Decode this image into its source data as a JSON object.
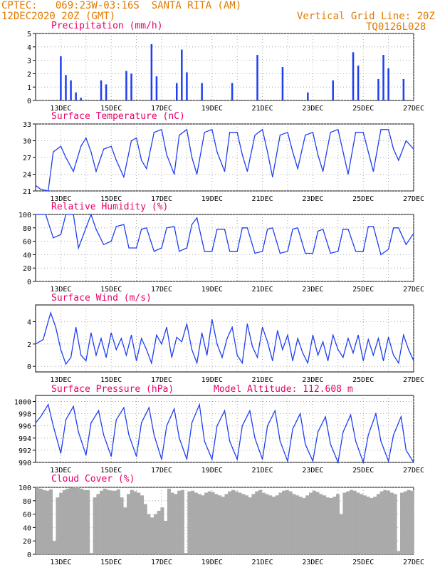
{
  "header": {
    "left_line1": "CPTEC:   069:23W-03:16S  SANTA RITA (AM)",
    "left_line2": "12DEC2020 20Z (GMT)",
    "right_line1": "Vertical Grid Line: 20Z",
    "right_line2": "TQ0126L028"
  },
  "colors": {
    "series": "#1f3ff0",
    "title": "#e8006a",
    "header": "#e07a00",
    "cloud": "#aaaaaa",
    "grid": "#999999"
  },
  "chart_data": [
    {
      "type": "bar",
      "title": "Precipitation (mm/h)",
      "ylim": [
        0,
        5
      ],
      "yticks": [
        0,
        1,
        2,
        3,
        4,
        5
      ],
      "xlabels": [
        "13DEC",
        "15DEC",
        "17DEC",
        "19DEC",
        "21DEC",
        "23DEC",
        "25DEC",
        "27DEC"
      ],
      "x_days": [
        13.0,
        13.2,
        13.4,
        13.6,
        13.8,
        14.6,
        14.8,
        15.6,
        15.8,
        16.6,
        16.8,
        17.6,
        17.8,
        18.0,
        18.6,
        19.8,
        20.8,
        21.8,
        22.8,
        23.8,
        24.6,
        24.8,
        25.6,
        25.8,
        26.0,
        26.6
      ],
      "values": [
        3.3,
        1.9,
        1.5,
        0.6,
        0.2,
        1.5,
        1.2,
        2.2,
        2.0,
        4.2,
        1.8,
        1.3,
        3.8,
        2.1,
        1.3,
        1.3,
        3.4,
        2.5,
        0.6,
        1.5,
        3.6,
        2.6,
        1.6,
        3.4,
        2.4,
        1.6
      ]
    },
    {
      "type": "line",
      "title": "Surface Temperature (nC)",
      "ylim": [
        21,
        33
      ],
      "yticks": [
        21,
        24,
        27,
        30,
        33
      ],
      "xlabels": [
        "13DEC",
        "15DEC",
        "17DEC",
        "19DEC",
        "21DEC",
        "23DEC",
        "25DEC",
        "27DEC"
      ],
      "x": [
        12.0,
        12.2,
        12.5,
        12.7,
        13.0,
        13.2,
        13.5,
        13.8,
        14.0,
        14.2,
        14.4,
        14.7,
        15.0,
        15.2,
        15.5,
        15.8,
        16.0,
        16.2,
        16.4,
        16.7,
        17.0,
        17.2,
        17.5,
        17.7,
        18.0,
        18.2,
        18.4,
        18.7,
        19.0,
        19.2,
        19.5,
        19.7,
        20.0,
        20.2,
        20.4,
        20.7,
        21.0,
        21.2,
        21.4,
        21.7,
        22.0,
        22.2,
        22.4,
        22.7,
        23.0,
        23.2,
        23.4,
        23.7,
        24.0,
        24.2,
        24.4,
        24.7,
        25.0,
        25.2,
        25.4,
        25.7,
        26.0,
        26.2,
        26.4,
        26.7,
        27.0
      ],
      "values": [
        22.0,
        21.3,
        21.0,
        28.0,
        29.0,
        27.0,
        24.5,
        29.0,
        30.5,
        28.0,
        24.5,
        28.5,
        29.0,
        26.5,
        23.5,
        30.0,
        30.5,
        26.5,
        25.0,
        31.5,
        32.0,
        27.5,
        24.0,
        31.0,
        32.0,
        27.0,
        24.0,
        31.5,
        32.0,
        28.0,
        24.5,
        31.5,
        31.5,
        27.5,
        24.5,
        31.0,
        32.0,
        28.0,
        23.5,
        31.0,
        31.5,
        28.0,
        25.0,
        31.0,
        31.5,
        27.5,
        24.5,
        31.5,
        32.0,
        28.0,
        24.0,
        31.5,
        31.5,
        28.0,
        24.5,
        32.0,
        32.0,
        28.5,
        26.5,
        30.0,
        28.5
      ]
    },
    {
      "type": "line",
      "title": "Relative Humidity (%)",
      "ylim": [
        0,
        100
      ],
      "yticks": [
        0,
        20,
        40,
        60,
        80,
        100
      ],
      "xlabels": [
        "13DEC",
        "15DEC",
        "17DEC",
        "19DEC",
        "21DEC",
        "23DEC",
        "25DEC",
        "27DEC"
      ],
      "x": [
        12.0,
        12.4,
        12.7,
        13.0,
        13.2,
        13.5,
        13.7,
        14.0,
        14.2,
        14.4,
        14.7,
        15.0,
        15.2,
        15.5,
        15.7,
        16.0,
        16.2,
        16.4,
        16.7,
        17.0,
        17.2,
        17.5,
        17.7,
        18.0,
        18.2,
        18.4,
        18.7,
        19.0,
        19.2,
        19.5,
        19.7,
        20.0,
        20.2,
        20.4,
        20.7,
        21.0,
        21.2,
        21.4,
        21.7,
        22.0,
        22.2,
        22.4,
        22.7,
        23.0,
        23.2,
        23.4,
        23.7,
        24.0,
        24.2,
        24.4,
        24.7,
        25.0,
        25.2,
        25.4,
        25.7,
        26.0,
        26.2,
        26.4,
        26.7,
        27.0
      ],
      "values": [
        100,
        100,
        65,
        70,
        100,
        100,
        50,
        80,
        100,
        78,
        55,
        60,
        82,
        85,
        50,
        50,
        78,
        80,
        45,
        50,
        80,
        82,
        45,
        50,
        85,
        95,
        45,
        45,
        78,
        78,
        45,
        45,
        80,
        80,
        42,
        45,
        78,
        80,
        42,
        45,
        78,
        80,
        42,
        42,
        75,
        78,
        42,
        45,
        78,
        78,
        45,
        45,
        82,
        82,
        40,
        48,
        80,
        80,
        55,
        72
      ]
    },
    {
      "type": "line",
      "title": "Surface Wind (m/s)",
      "ylim": [
        -0.5,
        5.5
      ],
      "yticks": [
        0,
        2,
        4
      ],
      "xlabels": [
        "13DEC",
        "15DEC",
        "17DEC",
        "19DEC",
        "21DEC",
        "23DEC",
        "25DEC",
        "27DEC"
      ],
      "x": [
        12.0,
        12.3,
        12.6,
        12.8,
        13.0,
        13.2,
        13.4,
        13.6,
        13.8,
        14.0,
        14.2,
        14.4,
        14.6,
        14.8,
        15.0,
        15.2,
        15.4,
        15.6,
        15.8,
        16.0,
        16.2,
        16.4,
        16.6,
        16.8,
        17.0,
        17.2,
        17.4,
        17.6,
        17.8,
        18.0,
        18.2,
        18.4,
        18.6,
        18.8,
        19.0,
        19.2,
        19.4,
        19.6,
        19.8,
        20.0,
        20.2,
        20.4,
        20.6,
        20.8,
        21.0,
        21.2,
        21.4,
        21.6,
        21.8,
        22.0,
        22.2,
        22.4,
        22.6,
        22.8,
        23.0,
        23.2,
        23.4,
        23.6,
        23.8,
        24.0,
        24.2,
        24.4,
        24.6,
        24.8,
        25.0,
        25.2,
        25.4,
        25.6,
        25.8,
        26.0,
        26.2,
        26.4,
        26.6,
        26.8,
        27.0
      ],
      "values": [
        2.0,
        2.4,
        4.8,
        3.5,
        1.5,
        0.2,
        0.8,
        3.5,
        1.0,
        0.5,
        3.0,
        1.0,
        2.5,
        0.8,
        3.0,
        1.5,
        2.5,
        1.0,
        2.8,
        0.5,
        2.5,
        1.5,
        0.3,
        2.8,
        2.0,
        3.5,
        0.8,
        2.6,
        2.2,
        3.8,
        1.5,
        0.3,
        3.0,
        1.0,
        4.2,
        2.0,
        0.8,
        2.5,
        3.5,
        1.0,
        0.3,
        3.8,
        1.8,
        0.8,
        3.5,
        2.2,
        0.5,
        3.2,
        1.5,
        2.8,
        0.5,
        2.5,
        1.2,
        0.3,
        2.8,
        1.0,
        2.2,
        0.5,
        2.8,
        1.5,
        0.8,
        2.5,
        1.2,
        2.8,
        0.5,
        2.4,
        1.0,
        2.5,
        0.5,
        2.6,
        1.0,
        0.3,
        2.8,
        1.5,
        0.5
      ]
    },
    {
      "type": "line",
      "title": "Surface Pressure (hPa)",
      "annotation": "Model Altitude: 112.608 m",
      "ylim": [
        990,
        1001
      ],
      "yticks": [
        990,
        992,
        994,
        996,
        998,
        1000
      ],
      "xlabels": [
        "13DEC",
        "15DEC",
        "17DEC",
        "19DEC",
        "21DEC",
        "23DEC",
        "25DEC",
        "27DEC"
      ],
      "x": [
        12.0,
        12.2,
        12.5,
        12.7,
        13.0,
        13.2,
        13.5,
        13.7,
        14.0,
        14.2,
        14.5,
        14.7,
        15.0,
        15.2,
        15.5,
        15.7,
        16.0,
        16.2,
        16.5,
        16.7,
        17.0,
        17.2,
        17.5,
        17.7,
        18.0,
        18.2,
        18.5,
        18.7,
        19.0,
        19.2,
        19.5,
        19.7,
        20.0,
        20.2,
        20.5,
        20.7,
        21.0,
        21.2,
        21.5,
        21.7,
        22.0,
        22.2,
        22.5,
        22.7,
        23.0,
        23.2,
        23.5,
        23.7,
        24.0,
        24.2,
        24.5,
        24.7,
        25.0,
        25.2,
        25.5,
        25.7,
        26.0,
        26.2,
        26.5,
        26.7,
        27.0
      ],
      "values": [
        996.5,
        997.5,
        999.5,
        996.0,
        991.5,
        997.0,
        999.2,
        995.0,
        991.2,
        996.5,
        998.5,
        994.5,
        991.0,
        997.0,
        999.0,
        994.5,
        991.0,
        996.5,
        999.0,
        994.5,
        990.5,
        996.0,
        998.8,
        994.0,
        990.5,
        996.5,
        999.5,
        993.5,
        990.5,
        996.0,
        998.5,
        993.5,
        990.5,
        996.0,
        998.5,
        994.0,
        990.5,
        996.0,
        998.5,
        993.5,
        990.2,
        995.5,
        998.0,
        993.0,
        990.2,
        995.0,
        997.5,
        993.0,
        990.0,
        995.0,
        997.8,
        993.5,
        990.0,
        994.5,
        998.0,
        993.5,
        990.2,
        994.5,
        997.5,
        992.0,
        990.0
      ]
    },
    {
      "type": "bar",
      "title": "Cloud Cover (%)",
      "ylim": [
        0,
        100
      ],
      "yticks": [
        0,
        20,
        40,
        60,
        80,
        100
      ],
      "xlabels": [
        "13DEC",
        "15DEC",
        "17DEC",
        "19DEC",
        "21DEC",
        "23DEC",
        "25DEC",
        "27DEC"
      ],
      "values": [
        100,
        98,
        96,
        95,
        97,
        20,
        85,
        92,
        96,
        98,
        99,
        100,
        100,
        98,
        96,
        96,
        2,
        85,
        90,
        95,
        98,
        96,
        95,
        95,
        97,
        85,
        70,
        90,
        96,
        94,
        92,
        88,
        75,
        60,
        55,
        60,
        65,
        70,
        50,
        98,
        92,
        90,
        95,
        96,
        2,
        94,
        95,
        92,
        90,
        88,
        92,
        94,
        93,
        90,
        88,
        86,
        90,
        94,
        96,
        94,
        92,
        90,
        88,
        85,
        90,
        94,
        96,
        92,
        90,
        88,
        86,
        88,
        92,
        95,
        96,
        94,
        90,
        88,
        86,
        84,
        88,
        92,
        95,
        93,
        90,
        88,
        85,
        84,
        86,
        90,
        60,
        92,
        94,
        96,
        95,
        92,
        90,
        88,
        86,
        84,
        86,
        90,
        94,
        96,
        95,
        92,
        90,
        5,
        92,
        94,
        96,
        95
      ]
    }
  ]
}
